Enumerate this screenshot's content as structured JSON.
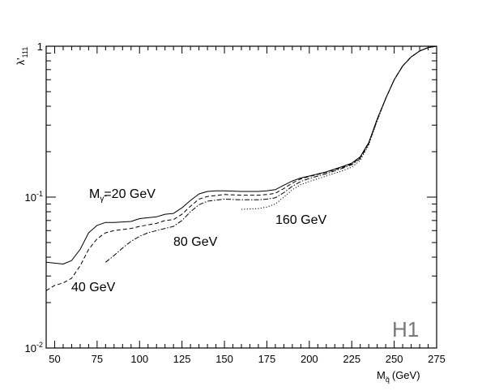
{
  "chart_data": {
    "type": "line",
    "title": "",
    "xlabel_main": "M",
    "xlabel_sub": "q̃",
    "xlabel_unit": "(GeV)",
    "ylabel_main": "λ'",
    "ylabel_sub": "111",
    "xlim": [
      45,
      275
    ],
    "ylim": [
      0.01,
      1
    ],
    "yscale": "log",
    "grid": false,
    "xticks": [
      50,
      75,
      100,
      125,
      150,
      175,
      200,
      225,
      250,
      275
    ],
    "xtick_labels": [
      "50",
      "75",
      "100",
      "125",
      "150",
      "175",
      "200",
      "225",
      "250",
      "275"
    ],
    "yticks": [
      0.01,
      0.1,
      1
    ],
    "ytick_labels": [
      {
        "base": "10",
        "exp": "-2"
      },
      {
        "base": "10",
        "exp": "-1"
      },
      {
        "base": "1",
        "exp": ""
      }
    ],
    "series": [
      {
        "style": "solid",
        "x": [
          45,
          55,
          60,
          65,
          70,
          75,
          80,
          85,
          95,
          100,
          110,
          115,
          120,
          125,
          130,
          135,
          140,
          145,
          150,
          160,
          170,
          175,
          180,
          185,
          190,
          195,
          200,
          210,
          220,
          225,
          230,
          235,
          240,
          245,
          250,
          255,
          260,
          265,
          270,
          275
        ],
        "y": [
          0.037,
          0.036,
          0.038,
          0.045,
          0.058,
          0.065,
          0.068,
          0.068,
          0.069,
          0.072,
          0.074,
          0.077,
          0.078,
          0.085,
          0.095,
          0.105,
          0.109,
          0.11,
          0.11,
          0.109,
          0.109,
          0.11,
          0.112,
          0.12,
          0.128,
          0.134,
          0.138,
          0.147,
          0.16,
          0.168,
          0.185,
          0.23,
          0.33,
          0.45,
          0.6,
          0.74,
          0.85,
          0.93,
          0.98,
          1.0
        ]
      },
      {
        "style": "dashed",
        "x": [
          45,
          50,
          55,
          60,
          65,
          70,
          75,
          80,
          85,
          95,
          100,
          110,
          115,
          120,
          125,
          130,
          135,
          140,
          150,
          160,
          170,
          175,
          180,
          185,
          190,
          195,
          200,
          210,
          220,
          225,
          230,
          235,
          240,
          245,
          250,
          255,
          260,
          265,
          270,
          275
        ],
        "y": [
          0.024,
          0.026,
          0.027,
          0.029,
          0.035,
          0.045,
          0.053,
          0.058,
          0.06,
          0.062,
          0.064,
          0.067,
          0.07,
          0.071,
          0.077,
          0.087,
          0.097,
          0.101,
          0.104,
          0.103,
          0.103,
          0.104,
          0.106,
          0.114,
          0.124,
          0.132,
          0.137,
          0.146,
          0.158,
          0.166,
          0.183,
          0.228,
          0.33,
          0.45,
          0.6,
          0.74,
          0.85,
          0.93,
          0.98,
          1.0
        ]
      },
      {
        "style": "dashdot",
        "x": [
          80,
          85,
          90,
          95,
          100,
          105,
          110,
          115,
          120,
          125,
          130,
          135,
          140,
          150,
          160,
          170,
          175,
          180,
          185,
          190,
          195,
          200,
          210,
          220,
          225,
          230,
          235,
          240,
          245,
          250,
          255,
          260,
          265,
          270,
          275
        ],
        "y": [
          0.037,
          0.041,
          0.046,
          0.051,
          0.055,
          0.058,
          0.06,
          0.062,
          0.064,
          0.07,
          0.08,
          0.089,
          0.094,
          0.097,
          0.096,
          0.096,
          0.097,
          0.099,
          0.107,
          0.118,
          0.127,
          0.133,
          0.143,
          0.156,
          0.164,
          0.18,
          0.226,
          0.325,
          0.45,
          0.6,
          0.74,
          0.85,
          0.93,
          0.98,
          1.0
        ]
      },
      {
        "style": "dotted",
        "x": [
          160,
          170,
          175,
          180,
          185,
          190,
          195,
          200,
          210,
          220,
          225,
          230,
          235,
          240,
          245,
          250,
          255,
          260,
          265,
          270,
          275
        ],
        "y": [
          0.083,
          0.084,
          0.086,
          0.09,
          0.1,
          0.112,
          0.121,
          0.127,
          0.138,
          0.15,
          0.158,
          0.175,
          0.222,
          0.32,
          0.45,
          0.6,
          0.74,
          0.85,
          0.93,
          0.98,
          1.0
        ]
      }
    ],
    "annotations": [
      {
        "kind": "photino",
        "prefix": "M",
        "sub": "γ̃",
        "text": "=20 GeV"
      },
      {
        "kind": "plain",
        "text": "80 GeV"
      },
      {
        "kind": "plain",
        "text": "160 GeV"
      },
      {
        "kind": "plain",
        "text": "40 GeV"
      }
    ],
    "watermark": "H1"
  }
}
